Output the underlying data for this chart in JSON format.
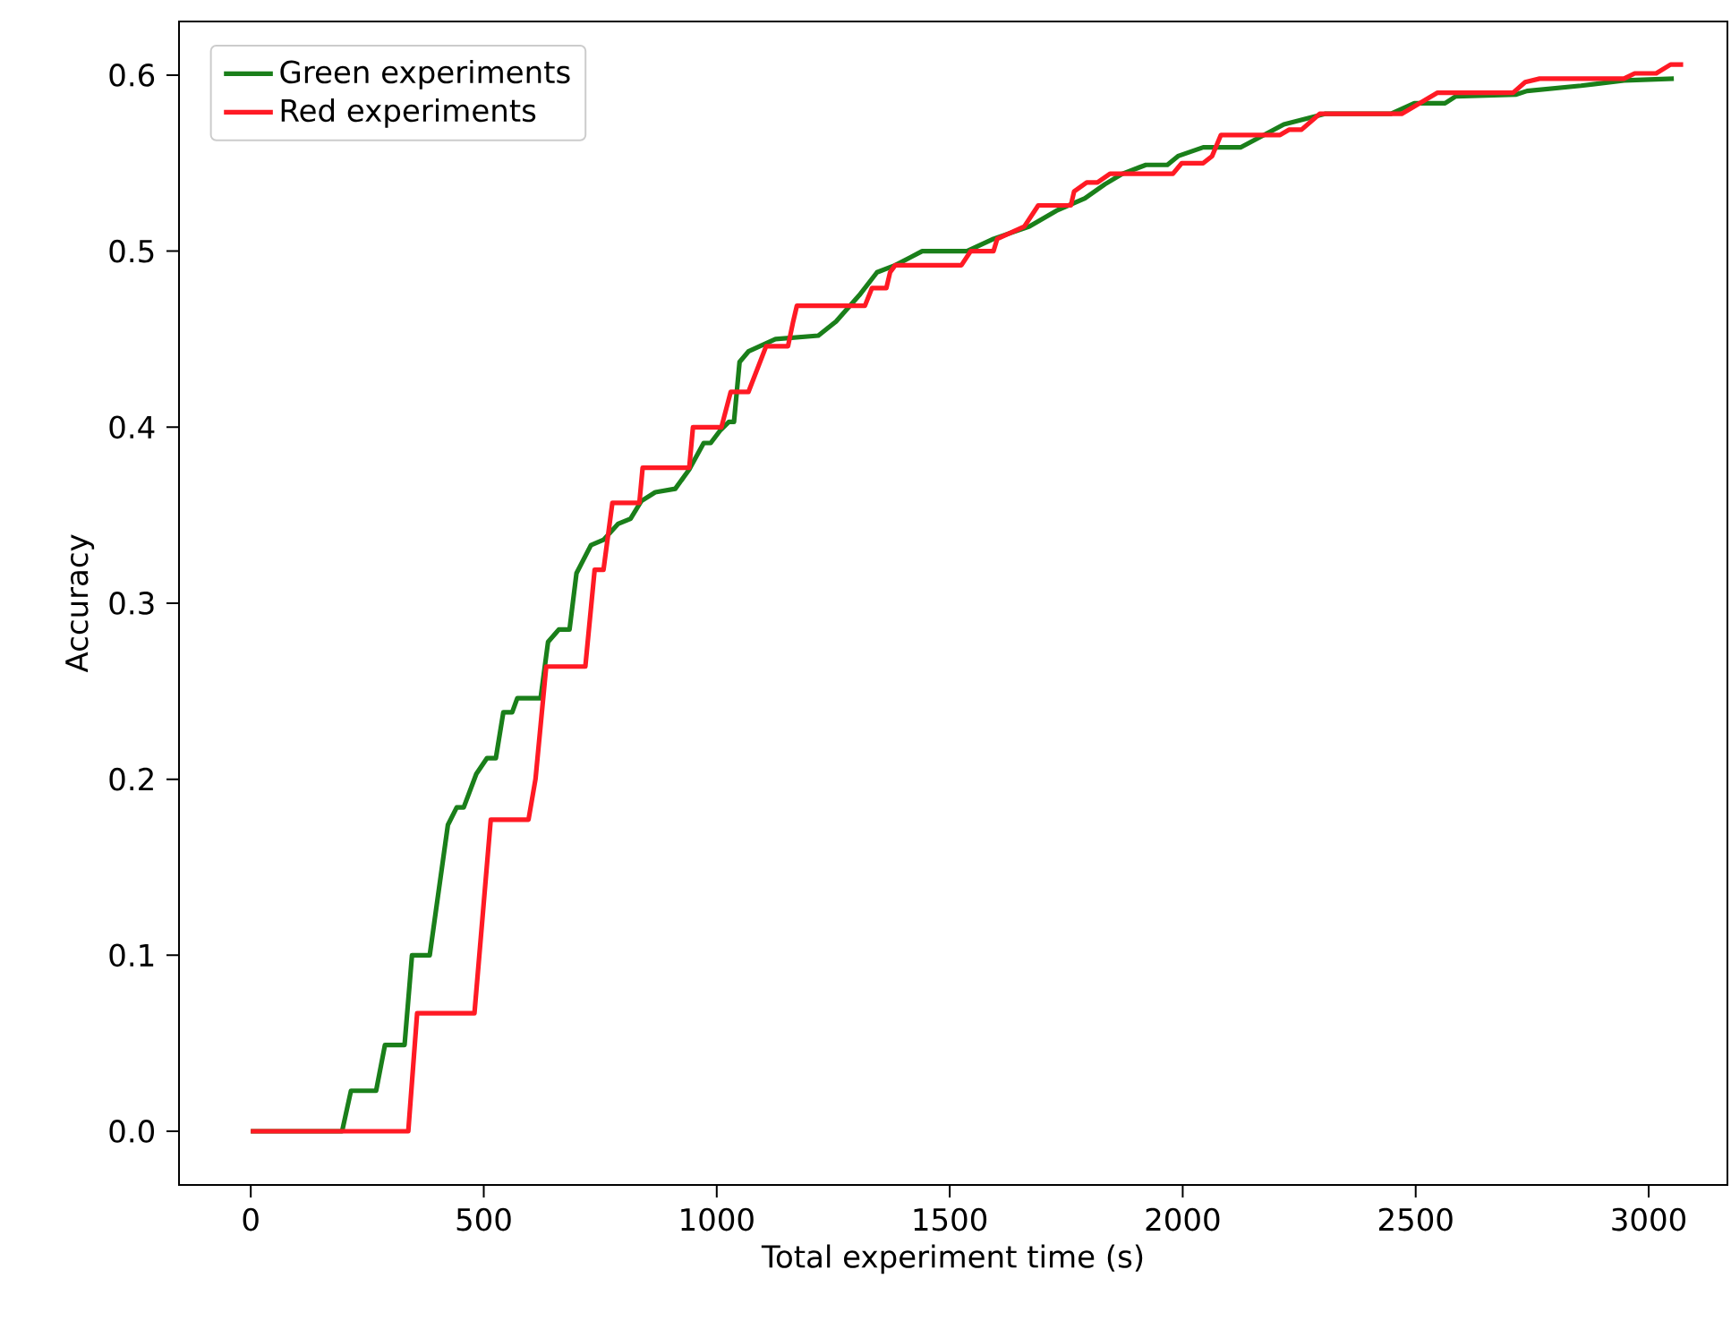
{
  "chart_data": {
    "type": "line",
    "xlabel": "Total experiment time (s)",
    "ylabel": "Accuracy",
    "xlim": [
      -154,
      3169
    ],
    "ylim": [
      -0.0305,
      0.6305
    ],
    "xticks": [
      0,
      500,
      1000,
      1500,
      2000,
      2500,
      3000
    ],
    "yticks": [
      {
        "value": 0,
        "label": "0.0"
      },
      {
        "value": 0.1,
        "label": "0.1"
      },
      {
        "value": 0.2,
        "label": "0.2"
      },
      {
        "value": 0.3,
        "label": "0.3"
      },
      {
        "value": 0.4,
        "label": "0.4"
      },
      {
        "value": 0.5,
        "label": "0.5"
      },
      {
        "value": 0.6,
        "label": "0.6"
      }
    ],
    "legend": "top left",
    "grid": false,
    "marker": "none",
    "line_style": "solid",
    "series": [
      {
        "name": "Green experiments",
        "color": "#1a7f1a",
        "x": [
          0,
          196,
          215,
          269,
          288,
          330,
          346,
          384,
          423,
          442,
          457,
          484,
          507,
          526,
          542,
          561,
          572,
          622,
          638,
          661,
          684,
          699,
          730,
          757,
          788,
          815,
          838,
          868,
          911,
          941,
          972,
          987,
          1007,
          1026,
          1037,
          1049,
          1068,
          1126,
          1218,
          1256,
          1306,
          1344,
          1383,
          1441,
          1537,
          1594,
          1671,
          1729,
          1790,
          1833,
          1871,
          1921,
          1967,
          1990,
          2044,
          2125,
          2217,
          2305,
          2447,
          2497,
          2563,
          2586,
          2716,
          2739,
          2855,
          2947,
          3054
        ],
        "values": [
          0,
          0,
          0.023,
          0.023,
          0.049,
          0.049,
          0.1,
          0.1,
          0.174,
          0.184,
          0.184,
          0.203,
          0.212,
          0.212,
          0.238,
          0.238,
          0.246,
          0.246,
          0.278,
          0.285,
          0.285,
          0.317,
          0.333,
          0.336,
          0.345,
          0.348,
          0.358,
          0.363,
          0.365,
          0.376,
          0.391,
          0.391,
          0.398,
          0.403,
          0.403,
          0.437,
          0.443,
          0.45,
          0.452,
          0.46,
          0.475,
          0.488,
          0.492,
          0.5,
          0.5,
          0.507,
          0.514,
          0.523,
          0.53,
          0.538,
          0.544,
          0.549,
          0.549,
          0.554,
          0.559,
          0.559,
          0.572,
          0.578,
          0.578,
          0.584,
          0.584,
          0.588,
          0.589,
          0.591,
          0.594,
          0.597,
          0.598
        ]
      },
      {
        "name": "Red experiments",
        "color": "#ff1a24",
        "x": [
          0,
          338,
          357,
          480,
          515,
          596,
          611,
          634,
          718,
          738,
          757,
          776,
          834,
          841,
          941,
          949,
          1010,
          1030,
          1068,
          1106,
          1153,
          1164,
          1172,
          1318,
          1333,
          1364,
          1372,
          1383,
          1525,
          1545,
          1594,
          1602,
          1660,
          1690,
          1760,
          1767,
          1794,
          1817,
          1844,
          1979,
          1998,
          2044,
          2063,
          2082,
          2209,
          2228,
          2255,
          2294,
          2470,
          2547,
          2709,
          2735,
          2766,
          2947,
          2970,
          3016,
          3047,
          3074
        ],
        "values": [
          0,
          0,
          0.067,
          0.067,
          0.177,
          0.177,
          0.2,
          0.264,
          0.264,
          0.319,
          0.319,
          0.357,
          0.357,
          0.377,
          0.377,
          0.4,
          0.4,
          0.42,
          0.42,
          0.446,
          0.446,
          0.46,
          0.469,
          0.469,
          0.479,
          0.479,
          0.488,
          0.492,
          0.492,
          0.5,
          0.5,
          0.507,
          0.514,
          0.526,
          0.526,
          0.534,
          0.539,
          0.539,
          0.544,
          0.544,
          0.55,
          0.55,
          0.554,
          0.566,
          0.566,
          0.569,
          0.569,
          0.578,
          0.578,
          0.59,
          0.59,
          0.596,
          0.598,
          0.598,
          0.601,
          0.601,
          0.606,
          0.606
        ]
      }
    ]
  }
}
